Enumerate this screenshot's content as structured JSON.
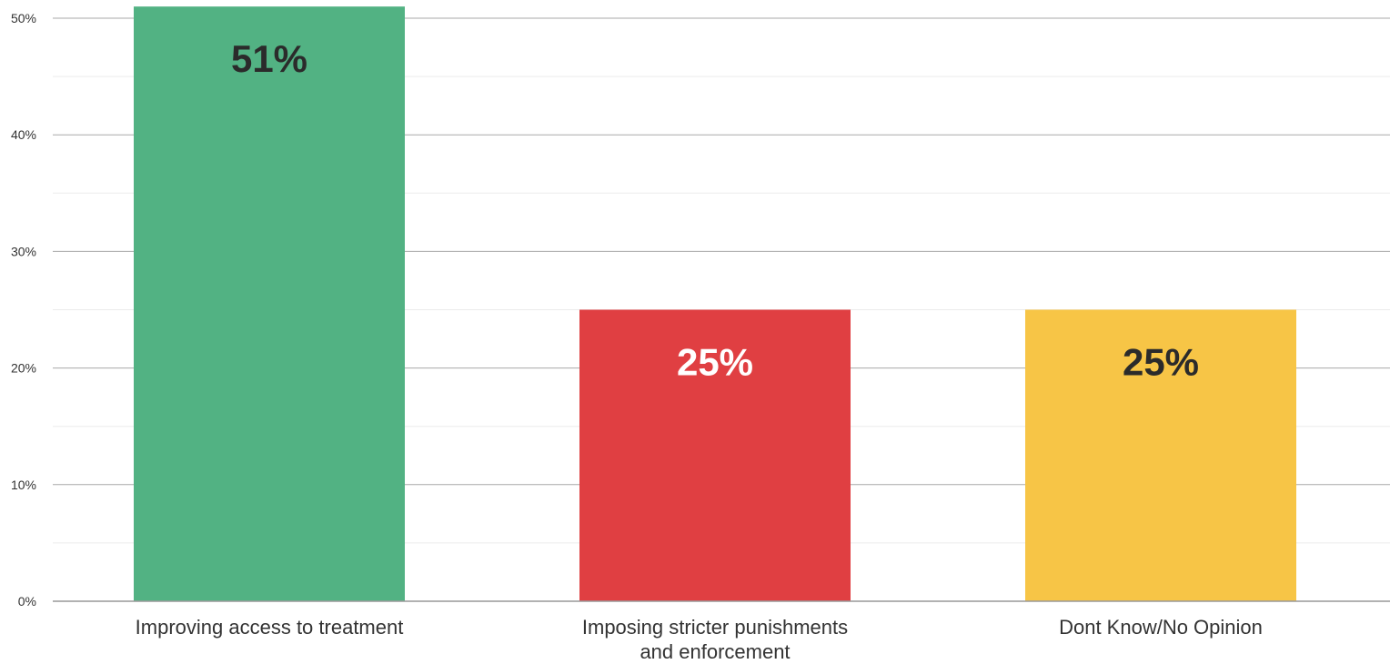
{
  "chart_data": {
    "type": "bar",
    "title": "",
    "xlabel": "",
    "ylabel": "",
    "ylim": [
      0,
      50
    ],
    "y_ticks": [
      "0%",
      "10%",
      "20%",
      "30%",
      "40%",
      "50%"
    ],
    "y_tick_values": [
      0,
      10,
      20,
      30,
      40,
      50
    ],
    "grid": true,
    "legend": "none",
    "categories": [
      [
        "Improving access to treatment"
      ],
      [
        "Imposing stricter punishments",
        "and enforcement"
      ],
      [
        "Dont Know/No Opinion"
      ]
    ],
    "values": [
      51,
      25,
      25
    ],
    "data_labels": [
      "51%",
      "25%",
      "25%"
    ],
    "bar_colors": [
      "#52b283",
      "#e03f42",
      "#f7c546"
    ],
    "label_colors": [
      "#2b2b2b",
      "#ffffff",
      "#2b2b2b"
    ]
  },
  "colors": {
    "major_grid": "#a9a9a9",
    "minor_grid": "#ececec",
    "axis": "#999999"
  }
}
